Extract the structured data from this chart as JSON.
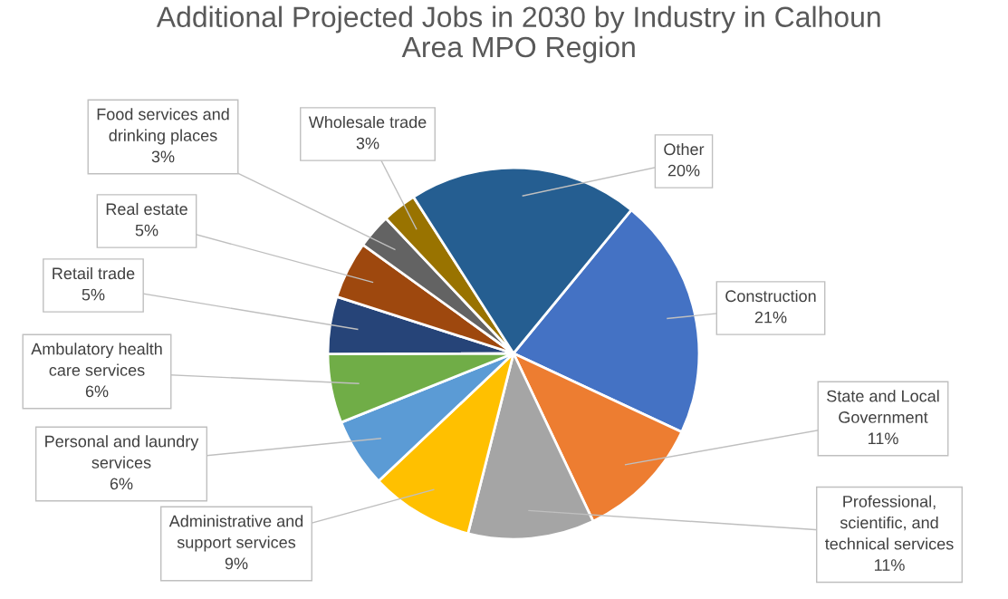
{
  "chart_data": {
    "type": "pie",
    "title": "Additional Projected Jobs in 2030 by Industry in Calhoun\nArea MPO Region",
    "categories": [
      "Construction",
      "State and Local\nGovernment",
      "Professional,\nscientific, and\ntechnical services",
      "Administrative and\nsupport services",
      "Personal and laundry\nservices",
      "Ambulatory health\ncare services",
      "Retail trade",
      "Real estate",
      "Food services and\ndrinking places",
      "Wholesale trade",
      "Other"
    ],
    "values": [
      21,
      11,
      11,
      9,
      6,
      6,
      5,
      5,
      3,
      3,
      20
    ],
    "value_labels": [
      "21%",
      "11%",
      "11%",
      "9%",
      "6%",
      "6%",
      "5%",
      "5%",
      "3%",
      "3%",
      "20%"
    ],
    "colors": [
      "#4472c4",
      "#ed7d31",
      "#a5a5a5",
      "#ffc000",
      "#5b9bd5",
      "#70ad47",
      "#264478",
      "#9e480e",
      "#636363",
      "#997300",
      "#255e91"
    ],
    "legend": false
  }
}
